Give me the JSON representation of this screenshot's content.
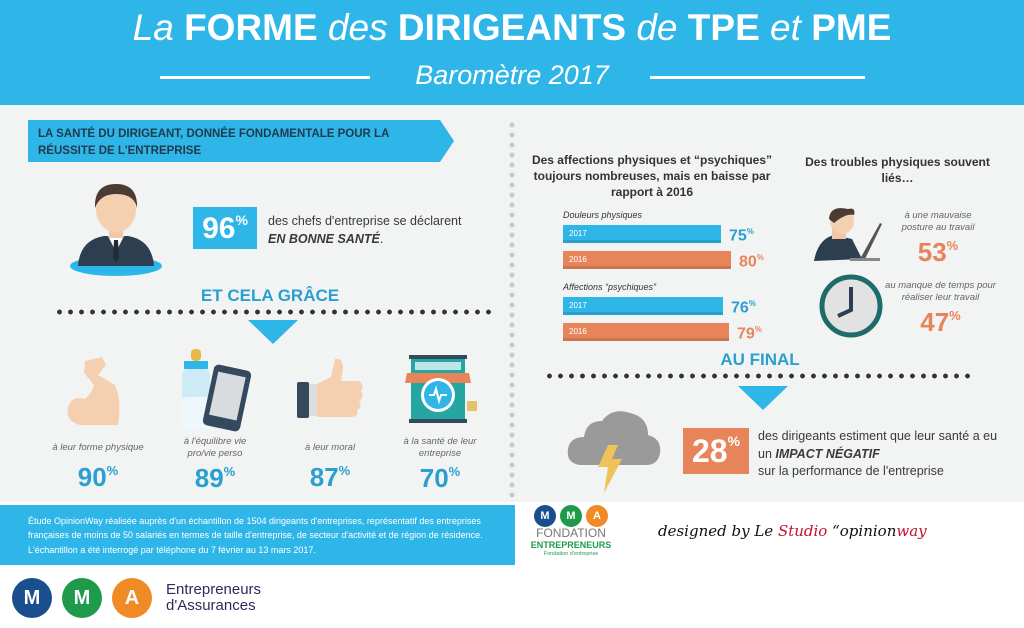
{
  "header": {
    "title_parts": [
      "La ",
      "FORME",
      " des ",
      "DIRIGEANTS",
      " de ",
      "TPE",
      " et ",
      "PME"
    ],
    "subtitle": "Baromètre 2017"
  },
  "left": {
    "banner": "LA SANTÉ DU DIRIGEANT, DONNÉE FONDAMENTALE POUR LA RÉUSSITE DE L'ENTREPRISE",
    "health_pct": "96",
    "health_text": "des chefs d'entreprise se déclarent",
    "health_emph": "EN BONNE SANTÉ",
    "heading": "ET CELA GRÂCE",
    "items": [
      {
        "icon": "flexed-arm-icon",
        "label": "à leur forme physique",
        "pct": "90"
      },
      {
        "icon": "bottle-and-phone-icon",
        "label": "à l'équilibre vie pro/vie perso",
        "pct": "89"
      },
      {
        "icon": "thumbs-up-icon",
        "label": "à leur moral",
        "pct": "87"
      },
      {
        "icon": "shop-heart-icon",
        "label": "à la santé de leur entreprise",
        "pct": "70"
      }
    ]
  },
  "chart_data": {
    "type": "bar",
    "orientation": "horizontal",
    "title": "Des affections physiques et “psychiques” toujours nombreuses, mais en baisse par rapport à 2016",
    "categories": [
      "Douleurs physiques",
      "Affections “psychiques”"
    ],
    "series": [
      {
        "name": "2017",
        "values": [
          75,
          76
        ],
        "color": "#2fb6e8"
      },
      {
        "name": "2016",
        "values": [
          80,
          79
        ],
        "color": "#e8845a"
      }
    ],
    "unit": "%"
  },
  "troubles": {
    "title": "Des troubles physiques souvent liés…",
    "items": [
      {
        "icon": "laptop-person-icon",
        "label": "à une mauvaise posture au travail",
        "pct": "53"
      },
      {
        "icon": "clock-icon",
        "label": "au manque de temps pour réaliser leur travail",
        "pct": "47"
      }
    ]
  },
  "final": {
    "heading": "AU FINAL",
    "pct": "28",
    "text1": "des dirigeants estiment que leur santé a eu un",
    "emph": "IMPACT NÉGATIF",
    "text2": "sur la performance de l'entreprise"
  },
  "footer": {
    "study": "Étude OpinionWay réalisée auprès d'un échantillon de 1504 dirigeants d'entreprises, représentatif des entreprises françaises de moins de 50 salariés en termes de taille d'entreprise, de secteur d'activité et de région de résidence. L'échantillon a été interrogé par téléphone du 7 février au 13 mars 2017.",
    "mma_letters": [
      "M",
      "M",
      "A"
    ],
    "mma_text1": "Entrepreneurs",
    "mma_text2": "d'Assurances",
    "fondation1": "FONDATION",
    "fondation2": "ENTREPRENEURS",
    "fondation3": "Fondation d'entreprise",
    "designed_by": "designed by Le ",
    "studio": "Studio",
    "opinion": " “opinion",
    "way": "way"
  },
  "colors": {
    "blue": "#2fb6e8",
    "orange": "#e8845a",
    "text_blue": "#2a9fd0"
  }
}
